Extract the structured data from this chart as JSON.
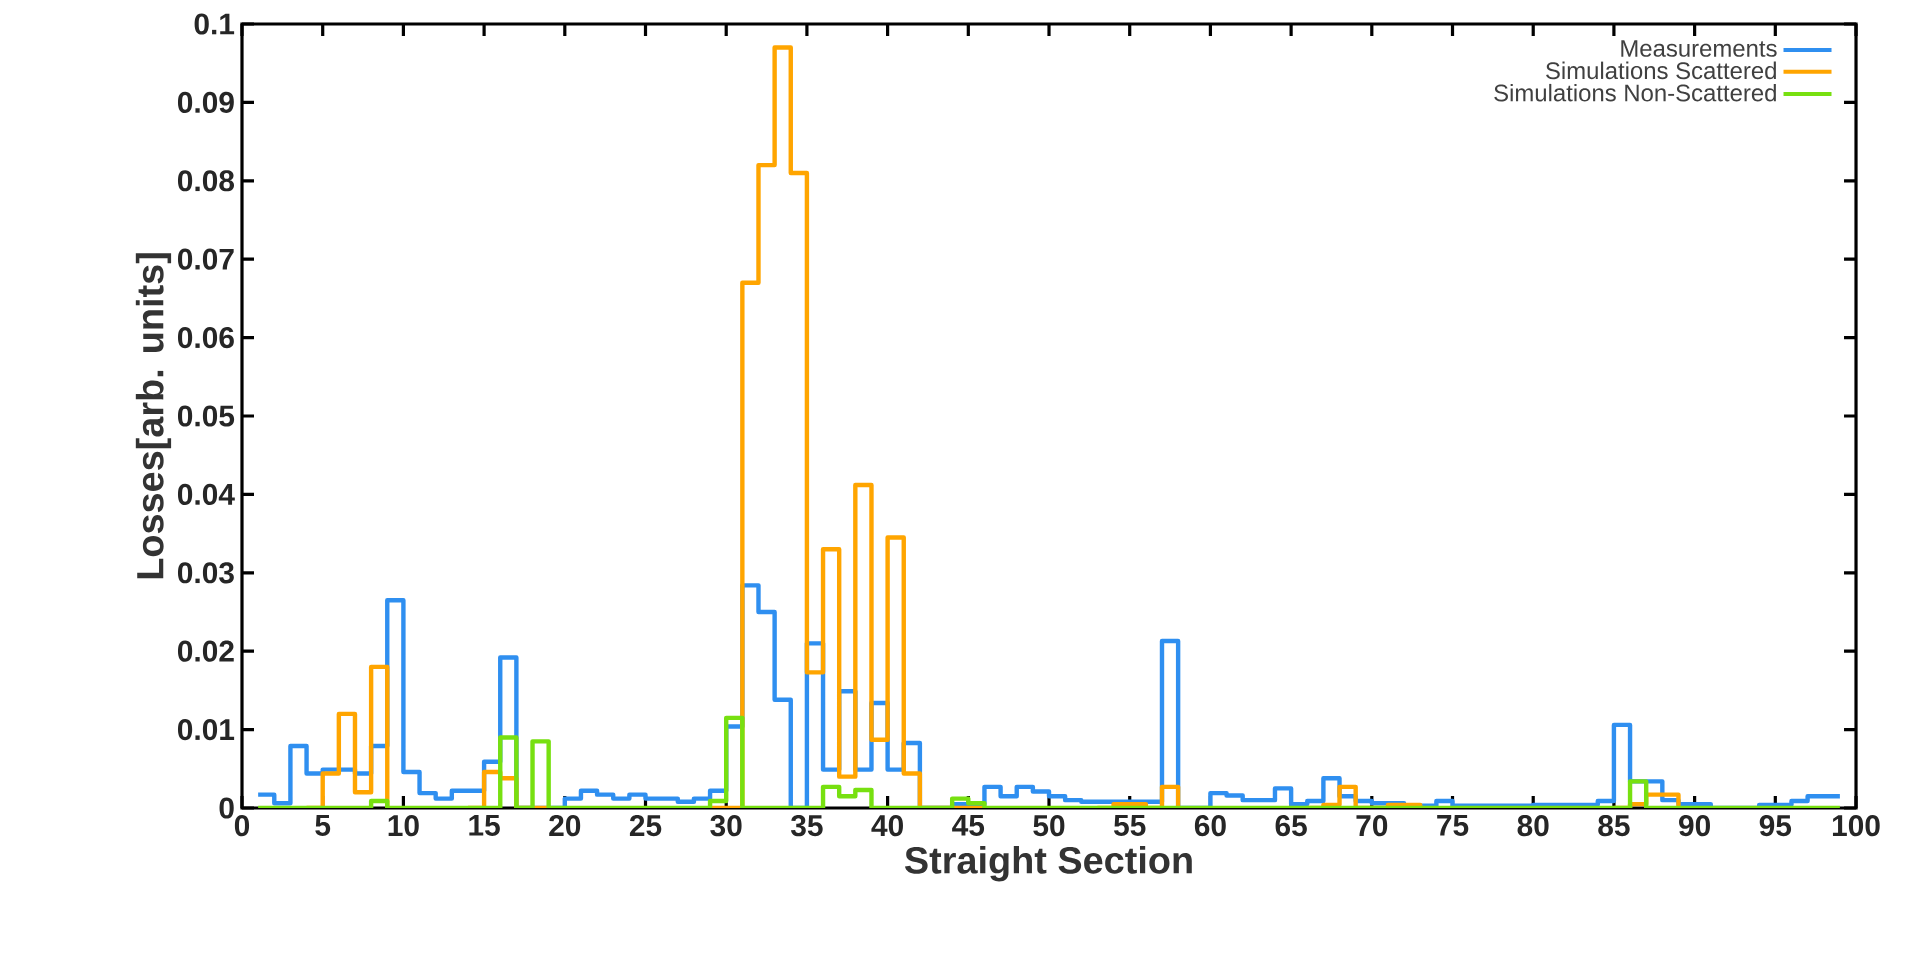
{
  "chart_data": {
    "type": "step",
    "xlabel": "Straight Section",
    "ylabel": "Losses[arb. units]",
    "x": [
      1,
      2,
      3,
      4,
      5,
      6,
      7,
      8,
      9,
      10,
      11,
      12,
      13,
      14,
      15,
      16,
      17,
      18,
      19,
      20,
      21,
      22,
      23,
      24,
      25,
      26,
      27,
      28,
      29,
      30,
      31,
      32,
      33,
      34,
      35,
      36,
      37,
      38,
      39,
      40,
      41,
      42,
      43,
      44,
      45,
      46,
      47,
      48,
      49,
      50,
      51,
      52,
      53,
      54,
      55,
      56,
      57,
      58,
      59,
      60,
      61,
      62,
      63,
      64,
      65,
      66,
      67,
      68,
      69,
      70,
      71,
      72,
      73,
      74,
      75,
      76,
      77,
      78,
      79,
      80,
      81,
      82,
      83,
      84,
      85,
      86,
      87,
      88,
      89,
      90,
      91,
      92,
      93,
      94,
      95,
      96,
      97,
      98,
      99
    ],
    "series": [
      {
        "name": "Measurements",
        "color": "#2f8ff0",
        "values": [
          0.0017,
          0.0006,
          0.0079,
          0.0044,
          0.0049,
          0.0049,
          0.0044,
          0.0079,
          0.0265,
          0.0046,
          0.0019,
          0.0012,
          0.0022,
          0.0022,
          0.0059,
          0.0192,
          0,
          0,
          0,
          0.0012,
          0.0022,
          0.0017,
          0.0012,
          0.0017,
          0.0012,
          0.0012,
          0.0008,
          0.0012,
          0.0022,
          0.0104,
          0.0284,
          0.025,
          0.0138,
          0,
          0.021,
          0.0049,
          0.0149,
          0.0049,
          0.0134,
          0.0049,
          0.0083,
          0,
          0,
          0.0005,
          0.0005,
          0.0027,
          0.0015,
          0.0027,
          0.0021,
          0.0015,
          0.001,
          0.0008,
          0.0008,
          0.0008,
          0.0008,
          0.0008,
          0.0213,
          0,
          0,
          0.0019,
          0.0016,
          0.001,
          0.001,
          0.0025,
          0.0005,
          0.0009,
          0.0038,
          0.0015,
          0.0009,
          0.0006,
          0.0006,
          0.0003,
          0.0003,
          0.0009,
          0.0003,
          0.0003,
          0.0003,
          0.0003,
          0.0003,
          0.0004,
          0.0004,
          0.0004,
          0.0004,
          0.0009,
          0.0106,
          0.0034,
          0.0034,
          0.001,
          0.0005,
          0.0005,
          0,
          0,
          0,
          0.0004,
          0.0004,
          0.0009,
          0.0015,
          0.0015,
          0.0015
        ]
      },
      {
        "name": "Simulations Scattered",
        "color": "#ffa500",
        "values": [
          null,
          null,
          null,
          0,
          0.0044,
          0.012,
          0.002,
          0.018,
          0,
          null,
          null,
          null,
          null,
          0,
          0.0046,
          0.0038,
          0,
          0,
          0,
          null,
          null,
          null,
          null,
          null,
          null,
          null,
          null,
          null,
          0,
          0,
          0.067,
          0.082,
          0.097,
          0.081,
          0.0173,
          0.033,
          0.004,
          0.0412,
          0.0087,
          0.0345,
          0.0044,
          0,
          0,
          0,
          0,
          0,
          null,
          null,
          null,
          null,
          null,
          null,
          0,
          0.0005,
          0.0005,
          0,
          0.0027,
          0,
          null,
          null,
          null,
          null,
          null,
          null,
          null,
          0,
          0.0004,
          0.0027,
          0,
          0,
          0.0004,
          0.0004,
          0,
          null,
          null,
          null,
          null,
          null,
          null,
          null,
          null,
          null,
          null,
          null,
          0,
          0.0005,
          0.0017,
          0.0017,
          0,
          null,
          null,
          null,
          null,
          null,
          null,
          null,
          null,
          null,
          null
        ]
      },
      {
        "name": "Simulations Non-Scattered",
        "color": "#77e010",
        "values": [
          0,
          0,
          0,
          0,
          0,
          0,
          0,
          0.0009,
          0,
          0,
          0,
          0,
          0,
          0,
          0,
          0.009,
          0,
          0.0085,
          0,
          0,
          0,
          0,
          0,
          0,
          0,
          0,
          0,
          0,
          0.0009,
          0.0115,
          0,
          0,
          0,
          0,
          0,
          0.0027,
          0.0015,
          0.0023,
          0,
          0,
          0,
          0,
          0,
          0.0012,
          0.0006,
          0,
          0,
          0,
          0,
          0,
          0,
          0,
          0,
          0,
          0,
          0,
          0,
          0,
          0,
          0,
          0,
          0,
          0,
          0,
          0,
          0,
          0,
          0,
          0,
          0,
          0,
          0,
          0,
          0,
          0,
          0,
          0,
          0,
          0,
          0,
          0,
          0,
          0,
          0,
          0,
          0.0034,
          0,
          0,
          0,
          0,
          0,
          0,
          0,
          0,
          0,
          0,
          0,
          0,
          0
        ]
      }
    ],
    "xlim": [
      0,
      100
    ],
    "ylim": [
      0,
      0.1
    ],
    "xticks": [
      0,
      5,
      10,
      15,
      20,
      25,
      30,
      35,
      40,
      45,
      50,
      55,
      60,
      65,
      70,
      75,
      80,
      85,
      90,
      95,
      100
    ],
    "yticks": [
      0,
      0.01,
      0.02,
      0.03,
      0.04,
      0.05,
      0.06,
      0.07,
      0.08,
      0.09,
      0.1
    ],
    "legend": "top right"
  }
}
